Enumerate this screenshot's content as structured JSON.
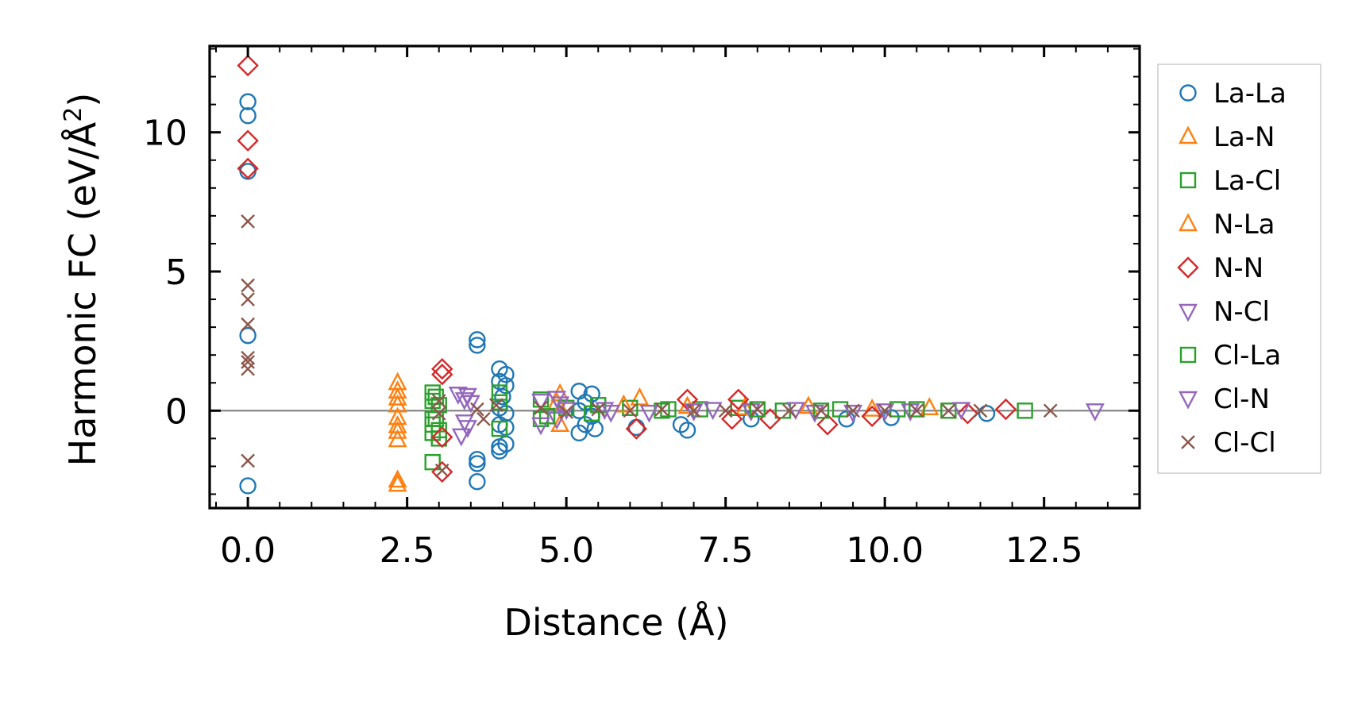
{
  "chart_data": {
    "type": "scatter",
    "xlabel": "Distance (Å)",
    "ylabel_main": "Harmonic FC (eV/Å",
    "ylabel_sup": "2",
    "ylabel_close": ")",
    "xlim": [
      -0.6,
      14.0
    ],
    "ylim": [
      -3.5,
      13.1
    ],
    "xticks": [
      0.0,
      2.5,
      5.0,
      7.5,
      10.0,
      12.5
    ],
    "xtick_labels": [
      "0.0",
      "2.5",
      "5.0",
      "7.5",
      "10.0",
      "12.5"
    ],
    "yticks": [
      0,
      5,
      10
    ],
    "ytick_labels": [
      "0",
      "5",
      "10"
    ],
    "zero_line": true,
    "legend_position": "outside-right",
    "series": [
      {
        "name": "La-La",
        "marker": "circle",
        "color": "#1f77b4",
        "points": [
          [
            0,
            11.1
          ],
          [
            0,
            10.6
          ],
          [
            0,
            8.6
          ],
          [
            0,
            2.7
          ],
          [
            0,
            -2.7
          ],
          [
            3.6,
            2.55
          ],
          [
            3.6,
            2.35
          ],
          [
            3.6,
            -1.75
          ],
          [
            3.6,
            -1.9
          ],
          [
            3.6,
            -2.55
          ],
          [
            3.95,
            1.5
          ],
          [
            4.05,
            1.3
          ],
          [
            3.95,
            1.05
          ],
          [
            4.05,
            0.9
          ],
          [
            4.0,
            0.5
          ],
          [
            3.95,
            0.1
          ],
          [
            4.05,
            -0.1
          ],
          [
            3.95,
            -0.5
          ],
          [
            4.05,
            -0.6
          ],
          [
            3.95,
            -1.3
          ],
          [
            4.05,
            -1.2
          ],
          [
            3.95,
            -1.45
          ],
          [
            5.2,
            0.7
          ],
          [
            5.4,
            0.6
          ],
          [
            5.3,
            0.3
          ],
          [
            5.2,
            0.0
          ],
          [
            5.4,
            -0.2
          ],
          [
            5.3,
            -0.5
          ],
          [
            5.2,
            -0.8
          ],
          [
            5.45,
            -0.65
          ],
          [
            6.1,
            -0.6
          ],
          [
            6.9,
            -0.7
          ],
          [
            6.8,
            -0.5
          ],
          [
            7.9,
            -0.3
          ],
          [
            9.4,
            -0.3
          ],
          [
            10.1,
            -0.25
          ],
          [
            11.6,
            -0.1
          ]
        ]
      },
      {
        "name": "La-N",
        "marker": "triangle-up",
        "color": "#ff7f0e",
        "points": [
          [
            2.35,
            1.0
          ],
          [
            2.35,
            0.7
          ],
          [
            2.35,
            0.45
          ],
          [
            2.35,
            0.2
          ],
          [
            2.35,
            -0.25
          ],
          [
            2.35,
            -0.55
          ],
          [
            2.35,
            -0.75
          ],
          [
            2.35,
            -1.05
          ],
          [
            2.35,
            -2.5
          ],
          [
            2.35,
            -2.65
          ],
          [
            4.9,
            0.6
          ],
          [
            4.9,
            -0.5
          ],
          [
            6.15,
            0.45
          ],
          [
            8.8,
            0.15
          ],
          [
            10.7,
            0.1
          ]
        ]
      },
      {
        "name": "La-Cl",
        "marker": "square",
        "color": "#2ca02c",
        "points": [
          [
            2.9,
            0.65
          ],
          [
            2.9,
            0.35
          ],
          [
            2.9,
            -0.3
          ],
          [
            2.9,
            -0.5
          ],
          [
            2.9,
            -0.8
          ],
          [
            2.9,
            -1.85
          ],
          [
            3.0,
            -1.0
          ],
          [
            3.0,
            0.2
          ],
          [
            3.0,
            -0.7
          ],
          [
            3.95,
            0.65
          ],
          [
            3.95,
            -0.65
          ],
          [
            4.6,
            0.4
          ],
          [
            4.6,
            -0.3
          ],
          [
            5.0,
            0.1
          ],
          [
            5.5,
            0.2
          ],
          [
            6.0,
            0.1
          ],
          [
            6.5,
            0.0
          ],
          [
            7.1,
            0.05
          ],
          [
            7.7,
            0.1
          ],
          [
            8.4,
            0.0
          ],
          [
            9.3,
            0.05
          ],
          [
            10.2,
            0.05
          ],
          [
            11.0,
            0.0
          ],
          [
            12.2,
            0.0
          ]
        ]
      },
      {
        "name": "N-La",
        "marker": "triangle-up",
        "color": "#ff7f0e",
        "points": [
          [
            4.85,
            0.3
          ],
          [
            5.9,
            0.2
          ],
          [
            6.9,
            0.15
          ],
          [
            7.8,
            0.1
          ],
          [
            9.8,
            0.05
          ]
        ]
      },
      {
        "name": "N-N",
        "marker": "diamond",
        "color": "#d62728",
        "points": [
          [
            0,
            12.4
          ],
          [
            0,
            9.7
          ],
          [
            0,
            8.7
          ],
          [
            3.05,
            1.5
          ],
          [
            3.05,
            1.3
          ],
          [
            3.05,
            -0.95
          ],
          [
            3.05,
            -2.2
          ],
          [
            6.1,
            -0.65
          ],
          [
            6.9,
            0.4
          ],
          [
            7.6,
            -0.3
          ],
          [
            7.7,
            0.4
          ],
          [
            8.2,
            -0.3
          ],
          [
            9.1,
            -0.5
          ],
          [
            9.8,
            -0.2
          ],
          [
            11.3,
            -0.1
          ],
          [
            11.9,
            0.05
          ]
        ]
      },
      {
        "name": "N-Cl",
        "marker": "triangle-down",
        "color": "#9467bd",
        "points": [
          [
            3.3,
            0.6
          ],
          [
            3.4,
            0.4
          ],
          [
            3.4,
            -0.4
          ],
          [
            3.35,
            -0.9
          ],
          [
            3.5,
            0.3
          ],
          [
            4.6,
            0.35
          ],
          [
            4.6,
            -0.5
          ],
          [
            4.85,
            0.45
          ],
          [
            4.85,
            -0.3
          ],
          [
            5.0,
            0.05
          ],
          [
            5.6,
            0.05
          ],
          [
            6.3,
            -0.05
          ],
          [
            7.3,
            0.05
          ],
          [
            7.9,
            0.0
          ],
          [
            8.6,
            0.05
          ],
          [
            9.5,
            -0.05
          ],
          [
            10.4,
            0.0
          ],
          [
            11.2,
            0.05
          ],
          [
            13.3,
            0.0
          ]
        ]
      },
      {
        "name": "Cl-La",
        "marker": "square",
        "color": "#2ca02c",
        "points": [
          [
            2.95,
            0.5
          ],
          [
            2.95,
            -0.3
          ],
          [
            3.95,
            0.3
          ],
          [
            4.7,
            -0.2
          ],
          [
            5.4,
            -0.1
          ],
          [
            6.6,
            0.05
          ],
          [
            8.0,
            0.05
          ],
          [
            9.0,
            0.0
          ],
          [
            10.5,
            0.05
          ]
        ]
      },
      {
        "name": "Cl-N",
        "marker": "triangle-down",
        "color": "#9467bd",
        "points": [
          [
            3.45,
            -0.6
          ],
          [
            3.45,
            0.55
          ],
          [
            4.9,
            0.25
          ],
          [
            5.7,
            -0.05
          ],
          [
            7.0,
            0.0
          ],
          [
            8.9,
            -0.05
          ],
          [
            10.0,
            0.0
          ]
        ]
      },
      {
        "name": "Cl-Cl",
        "marker": "x",
        "color": "#8c564b",
        "points": [
          [
            0,
            6.8
          ],
          [
            0,
            4.5
          ],
          [
            0,
            4.0
          ],
          [
            0,
            3.1
          ],
          [
            0,
            1.9
          ],
          [
            0,
            1.75
          ],
          [
            0,
            1.5
          ],
          [
            0,
            -1.8
          ],
          [
            3.0,
            0.35
          ],
          [
            3.0,
            -0.1
          ],
          [
            3.05,
            -2.15
          ],
          [
            3.6,
            0.05
          ],
          [
            3.7,
            -0.3
          ],
          [
            3.9,
            0.2
          ],
          [
            4.6,
            0.1
          ],
          [
            5.0,
            -0.05
          ],
          [
            5.5,
            0.05
          ],
          [
            6.0,
            0.0
          ],
          [
            6.5,
            0.05
          ],
          [
            7.0,
            0.0
          ],
          [
            7.5,
            0.0
          ],
          [
            8.0,
            0.05
          ],
          [
            8.5,
            0.0
          ],
          [
            9.0,
            0.0
          ],
          [
            9.5,
            0.0
          ],
          [
            10.0,
            0.0
          ],
          [
            10.5,
            0.0
          ],
          [
            11.0,
            0.0
          ],
          [
            11.5,
            0.0
          ],
          [
            12.6,
            0.0
          ]
        ]
      }
    ]
  }
}
